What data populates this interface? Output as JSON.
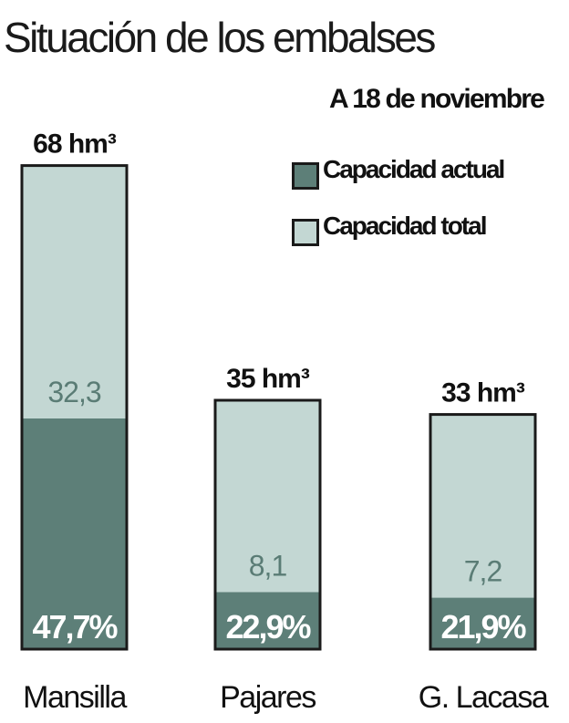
{
  "chart_data": {
    "type": "bar",
    "title": "Situación de los embalses",
    "subtitle": "A 18 de noviembre",
    "legend": [
      {
        "name": "Capacidad actual",
        "color": "#5d7f78"
      },
      {
        "name": "Capacidad total",
        "color": "#c3d7d3"
      }
    ],
    "categories": [
      "Mansilla",
      "Pajares",
      "G. Lacasa"
    ],
    "capacity_hm3": [
      68,
      35,
      33
    ],
    "capacity_labels": [
      "68 hm³",
      "35 hm³",
      "33 hm³"
    ],
    "current_values": [
      32.3,
      8.1,
      7.2
    ],
    "current_labels": [
      "32,3",
      "8,1",
      "7,2"
    ],
    "percent": [
      47.7,
      22.9,
      21.9
    ],
    "percent_labels": [
      "47,7%",
      "22,9%",
      "21,9%"
    ]
  }
}
